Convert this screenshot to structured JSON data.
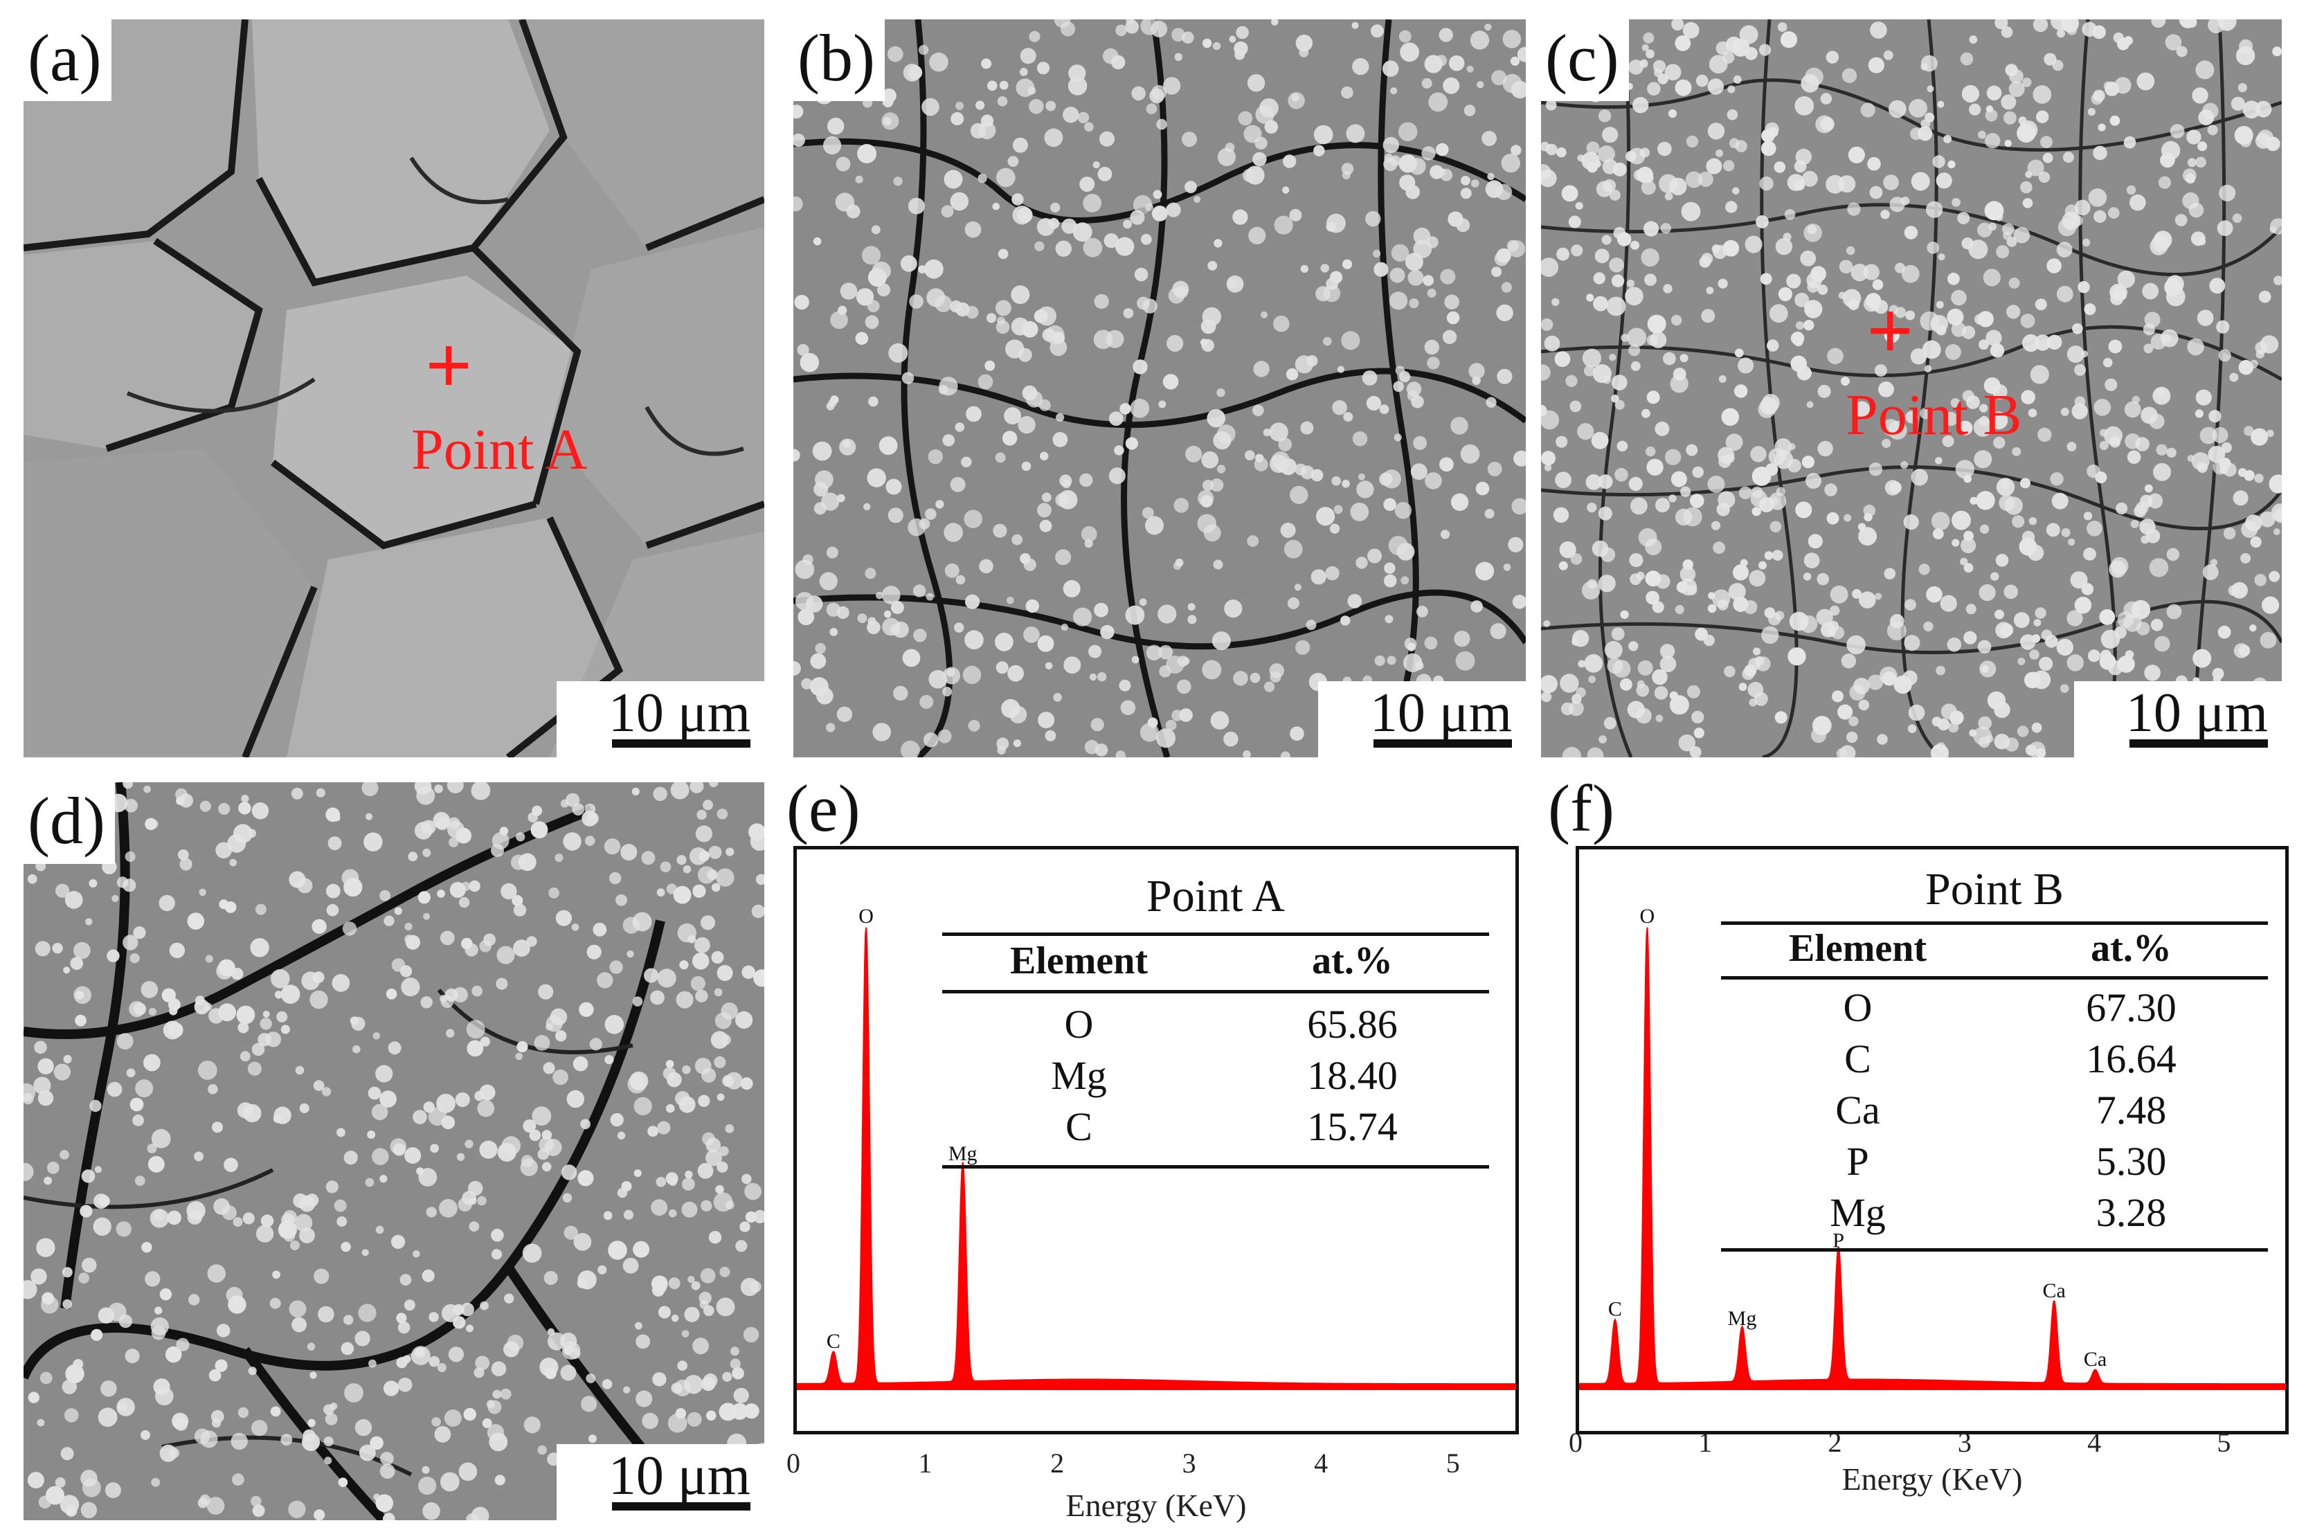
{
  "figure": {
    "panels": [
      {
        "id": "a",
        "label": "(a)",
        "scale_text": "10 μm",
        "marker_text": "Point  A"
      },
      {
        "id": "b",
        "label": "(b)",
        "scale_text": "10 μm"
      },
      {
        "id": "c",
        "label": "(c)",
        "scale_text": "10 μm",
        "marker_text": "Point B"
      },
      {
        "id": "d",
        "label": "(d)",
        "scale_text": "10 μm"
      }
    ],
    "marker_color": "#ff1a1a"
  },
  "eds": [
    {
      "label": "(e)",
      "table_title": "Point A",
      "table_headers": [
        "Element",
        "at.%"
      ],
      "table_rows": [
        [
          "O",
          "65.86"
        ],
        [
          "Mg",
          "18.40"
        ],
        [
          "C",
          "15.74"
        ]
      ]
    },
    {
      "label": "(f)",
      "table_title": "Point B",
      "table_headers": [
        "Element",
        "at.%"
      ],
      "table_rows": [
        [
          "O",
          "67.30"
        ],
        [
          "C",
          "16.64"
        ],
        [
          "Ca",
          "7.48"
        ],
        [
          "P",
          "5.30"
        ],
        [
          "Mg",
          "3.28"
        ]
      ]
    }
  ],
  "chart_data": [
    {
      "type": "line",
      "xlabel": "Energy (KeV)",
      "xlim": [
        0,
        5.5
      ],
      "x_ticks": [
        "0",
        "1",
        "2",
        "3",
        "4",
        "5"
      ],
      "color": "#ff0000",
      "peaks": [
        {
          "element": "C",
          "energy": 0.28,
          "height": 0.07
        },
        {
          "element": "O",
          "energy": 0.53,
          "height": 1.0
        },
        {
          "element": "Mg",
          "energy": 1.27,
          "height": 0.48
        }
      ]
    },
    {
      "type": "line",
      "xlabel": "Energy (KeV)",
      "xlim": [
        0,
        5.5
      ],
      "x_ticks": [
        "0",
        "1",
        "2",
        "3",
        "4",
        "5"
      ],
      "color": "#ff0000",
      "peaks": [
        {
          "element": "C",
          "energy": 0.28,
          "height": 0.14
        },
        {
          "element": "O",
          "energy": 0.53,
          "height": 1.0
        },
        {
          "element": "Mg",
          "energy": 1.27,
          "height": 0.12
        },
        {
          "element": "P",
          "energy": 2.02,
          "height": 0.29
        },
        {
          "element": "Ca",
          "energy": 3.7,
          "height": 0.18
        },
        {
          "element": "Ca",
          "energy": 4.02,
          "height": 0.03
        }
      ]
    }
  ]
}
